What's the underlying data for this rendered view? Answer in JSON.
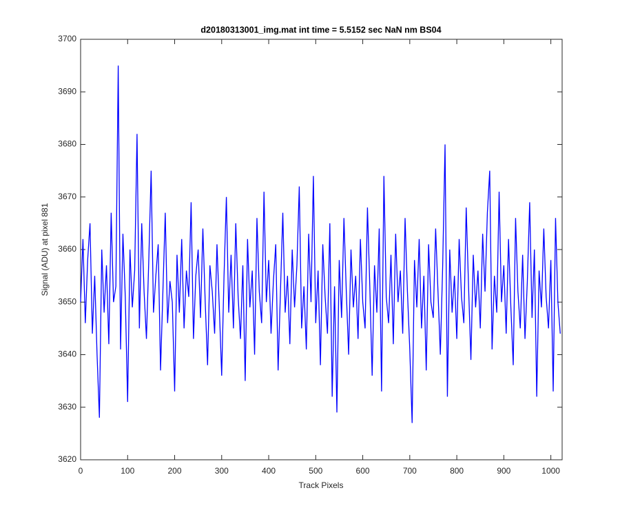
{
  "chart_data": {
    "type": "line",
    "title": "d20180313001_img.mat int time = 5.5152 sec  NaN nm BS04",
    "x_label": "Track Pixels",
    "y_label": "Signal (ADU) at pixel 881",
    "xlim": [
      0,
      1024
    ],
    "ylim": [
      3620,
      3700
    ],
    "xticks": [
      0,
      100,
      200,
      300,
      400,
      500,
      600,
      700,
      800,
      900,
      1000
    ],
    "yticks": [
      3620,
      3630,
      3640,
      3650,
      3660,
      3670,
      3680,
      3690,
      3700
    ],
    "series": [
      {
        "color": "#0000ff",
        "x": [
          0,
          5,
          10,
          15,
          20,
          25,
          30,
          35,
          40,
          45,
          50,
          55,
          60,
          65,
          70,
          75,
          80,
          85,
          90,
          95,
          100,
          105,
          110,
          115,
          120,
          125,
          130,
          135,
          140,
          145,
          150,
          155,
          160,
          165,
          170,
          175,
          180,
          185,
          190,
          195,
          200,
          205,
          210,
          215,
          220,
          225,
          230,
          235,
          240,
          245,
          250,
          255,
          260,
          265,
          270,
          275,
          280,
          285,
          290,
          295,
          300,
          305,
          310,
          315,
          320,
          325,
          330,
          335,
          340,
          345,
          350,
          355,
          360,
          365,
          370,
          375,
          380,
          385,
          390,
          395,
          400,
          405,
          410,
          415,
          420,
          425,
          430,
          435,
          440,
          445,
          450,
          455,
          460,
          465,
          470,
          475,
          480,
          485,
          490,
          495,
          500,
          505,
          510,
          515,
          520,
          525,
          530,
          535,
          540,
          545,
          550,
          555,
          560,
          565,
          570,
          575,
          580,
          585,
          590,
          595,
          600,
          605,
          610,
          615,
          620,
          625,
          630,
          635,
          640,
          645,
          650,
          655,
          660,
          665,
          670,
          675,
          680,
          685,
          690,
          695,
          700,
          705,
          710,
          715,
          720,
          725,
          730,
          735,
          740,
          745,
          750,
          755,
          760,
          765,
          770,
          775,
          780,
          785,
          790,
          795,
          800,
          805,
          810,
          815,
          820,
          825,
          830,
          835,
          840,
          845,
          850,
          855,
          860,
          865,
          870,
          875,
          880,
          885,
          890,
          895,
          900,
          905,
          910,
          915,
          920,
          925,
          930,
          935,
          940,
          945,
          950,
          955,
          960,
          965,
          970,
          975,
          980,
          985,
          990,
          995,
          1000,
          1005,
          1010,
          1015,
          1020
        ],
        "values": [
          3650,
          3662,
          3646,
          3658,
          3665,
          3644,
          3655,
          3640,
          3628,
          3660,
          3648,
          3657,
          3642,
          3667,
          3650,
          3653,
          3695,
          3641,
          3663,
          3651,
          3631,
          3660,
          3649,
          3656,
          3682,
          3645,
          3665,
          3652,
          3643,
          3658,
          3675,
          3648,
          3655,
          3661,
          3637,
          3652,
          3667,
          3646,
          3654,
          3650,
          3633,
          3659,
          3648,
          3662,
          3645,
          3656,
          3651,
          3669,
          3643,
          3655,
          3660,
          3647,
          3664,
          3650,
          3638,
          3657,
          3652,
          3644,
          3661,
          3649,
          3636,
          3655,
          3670,
          3648,
          3659,
          3645,
          3665,
          3651,
          3643,
          3657,
          3635,
          3662,
          3649,
          3656,
          3640,
          3666,
          3652,
          3646,
          3671,
          3650,
          3658,
          3644,
          3654,
          3661,
          3637,
          3652,
          3667,
          3648,
          3655,
          3642,
          3660,
          3649,
          3657,
          3672,
          3645,
          3653,
          3641,
          3663,
          3650,
          3674,
          3646,
          3656,
          3638,
          3661,
          3651,
          3644,
          3665,
          3632,
          3653,
          3629,
          3658,
          3647,
          3666,
          3652,
          3640,
          3660,
          3649,
          3655,
          3643,
          3662,
          3650,
          3645,
          3668,
          3653,
          3636,
          3657,
          3648,
          3664,
          3633,
          3674,
          3651,
          3646,
          3659,
          3642,
          3663,
          3650,
          3656,
          3644,
          3666,
          3652,
          3641,
          3627,
          3658,
          3649,
          3662,
          3645,
          3655,
          3637,
          3661,
          3650,
          3647,
          3664,
          3652,
          3640,
          3657,
          3680,
          3632,
          3660,
          3648,
          3655,
          3643,
          3662,
          3651,
          3646,
          3668,
          3653,
          3639,
          3659,
          3649,
          3656,
          3645,
          3663,
          3652,
          3667,
          3675,
          3641,
          3655,
          3648,
          3671,
          3650,
          3657,
          3644,
          3662,
          3649,
          3638,
          3666,
          3652,
          3645,
          3659,
          3643,
          3654,
          3669,
          3647,
          3660,
          3632,
          3656,
          3649,
          3664,
          3651,
          3645,
          3658,
          3633,
          3666,
          3650,
          3644
        ]
      }
    ]
  }
}
